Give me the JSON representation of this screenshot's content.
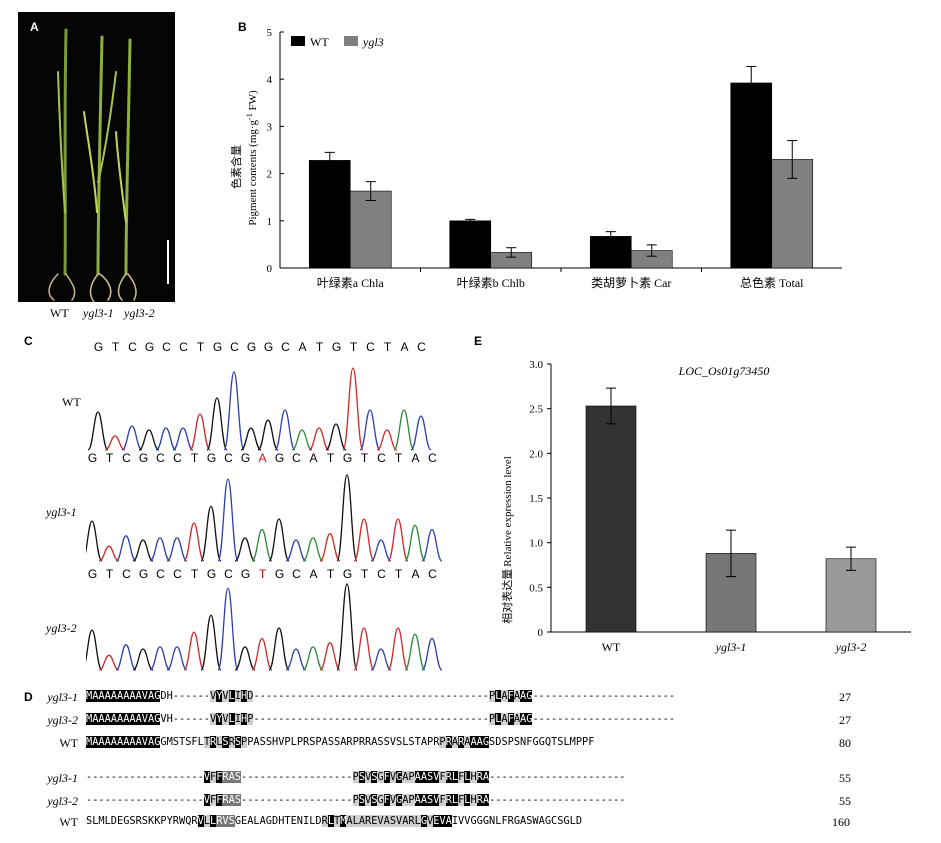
{
  "panel_a": {
    "letter": "A",
    "labels": [
      "WT",
      "ygl3-1",
      "ygl3-2"
    ]
  },
  "panel_b": {
    "letter": "B",
    "ylabel_cn": "色素含量",
    "ylabel_en": "Pigment contents (mg·g",
    "ylabel_sup": "-1",
    "ylabel_tail": " FW)",
    "legend_wt": "WT",
    "legend_mut": "ygl3"
  },
  "panel_c": {
    "letter": "C",
    "seq_wt": [
      "G",
      "T",
      "C",
      "G",
      "C",
      "C",
      "T",
      "G",
      "C",
      "G",
      "G",
      "C",
      "A",
      "T",
      "G",
      "T",
      "C",
      "T",
      "A",
      "C"
    ],
    "seq_m1": [
      "G",
      "T",
      "C",
      "G",
      "C",
      "C",
      "T",
      "G",
      "C",
      "G",
      "A",
      "G",
      "C",
      "A",
      "T",
      "G",
      "T",
      "C",
      "T",
      "A",
      "C"
    ],
    "seq_m2": [
      "G",
      "T",
      "C",
      "G",
      "C",
      "C",
      "T",
      "G",
      "C",
      "G",
      "T",
      "G",
      "C",
      "A",
      "T",
      "G",
      "T",
      "C",
      "T",
      "A",
      "C"
    ],
    "label_wt": "WT",
    "label_m1": "ygl3-1",
    "label_m2": "ygl3-2",
    "mut_index_m1": 10,
    "mut_index_m2": 10
  },
  "panel_d": {
    "letter": "D",
    "names": [
      "ygl3-1",
      "ygl3-2",
      "WT"
    ],
    "block1": {
      "rows": [
        [
          [
            "b",
            "MAAAAAAAAVAG"
          ],
          [
            "n",
            "DH------"
          ],
          [
            "l",
            "V"
          ],
          [
            "b",
            "Y"
          ],
          [
            "l",
            "V"
          ],
          [
            "b",
            "L"
          ],
          [
            "l",
            "I"
          ],
          [
            "b",
            "H"
          ],
          [
            "l",
            "D"
          ],
          [
            "n",
            "--------------------------------------"
          ],
          [
            "l",
            "P"
          ],
          [
            "b",
            "L"
          ],
          [
            "l",
            "A"
          ],
          [
            "b",
            "F"
          ],
          [
            "l",
            "A"
          ],
          [
            "b",
            "AG"
          ],
          [
            "n",
            "-----------------------"
          ]
        ],
        [
          [
            "b",
            "MAAAAAAAAVAG"
          ],
          [
            "n",
            "VH------"
          ],
          [
            "l",
            "V"
          ],
          [
            "b",
            "Y"
          ],
          [
            "l",
            "V"
          ],
          [
            "b",
            "L"
          ],
          [
            "l",
            "I"
          ],
          [
            "b",
            "H"
          ],
          [
            "l",
            "P"
          ],
          [
            "n",
            "--------------------------------------"
          ],
          [
            "l",
            "P"
          ],
          [
            "b",
            "L"
          ],
          [
            "l",
            "A"
          ],
          [
            "b",
            "F"
          ],
          [
            "l",
            "A"
          ],
          [
            "b",
            "AG"
          ],
          [
            "n",
            "-----------------------"
          ]
        ],
        [
          [
            "b",
            "MAAAAAAAAVAG"
          ],
          [
            "n",
            "GMSTSFL"
          ],
          [
            "l",
            "T"
          ],
          [
            "b",
            "R"
          ],
          [
            "l",
            "L"
          ],
          [
            "b",
            "S"
          ],
          [
            "l",
            "R"
          ],
          [
            "b",
            "S"
          ],
          [
            "l",
            "P"
          ],
          [
            "n",
            "PASSHVPLPRSPASSARPRRASSVSLSTAPR"
          ],
          [
            "l",
            "P"
          ],
          [
            "b",
            "R"
          ],
          [
            "l",
            "A"
          ],
          [
            "b",
            "R"
          ],
          [
            "l",
            "A"
          ],
          [
            "b",
            "AAG"
          ],
          [
            "n",
            "SDSPSNFGGQTSLMPPF"
          ]
        ]
      ],
      "nums": [
        "27",
        "27",
        "80"
      ]
    },
    "block2": {
      "rows": [
        [
          [
            "n",
            "-------------------"
          ],
          [
            "b",
            "V"
          ],
          [
            "l",
            "F"
          ],
          [
            "b",
            "F"
          ],
          [
            "g",
            "RAS"
          ],
          [
            "n",
            "------------------"
          ],
          [
            "l",
            "P"
          ],
          [
            "b",
            "S"
          ],
          [
            "l",
            "V"
          ],
          [
            "b",
            "S"
          ],
          [
            "l",
            "G"
          ],
          [
            "b",
            "F"
          ],
          [
            "l",
            "V"
          ],
          [
            "b",
            "G"
          ],
          [
            "l",
            "AP"
          ],
          [
            "b",
            "AASV"
          ],
          [
            "l",
            "F"
          ],
          [
            "b",
            "RL"
          ],
          [
            "l",
            "F"
          ],
          [
            "b",
            "L"
          ],
          [
            "l",
            "H"
          ],
          [
            "b",
            "RA"
          ],
          [
            "n",
            "----------------------"
          ]
        ],
        [
          [
            "n",
            "-------------------"
          ],
          [
            "b",
            "V"
          ],
          [
            "l",
            "F"
          ],
          [
            "b",
            "F"
          ],
          [
            "g",
            "RAS"
          ],
          [
            "n",
            "------------------"
          ],
          [
            "l",
            "P"
          ],
          [
            "b",
            "S"
          ],
          [
            "l",
            "V"
          ],
          [
            "b",
            "S"
          ],
          [
            "l",
            "G"
          ],
          [
            "b",
            "F"
          ],
          [
            "l",
            "V"
          ],
          [
            "b",
            "G"
          ],
          [
            "l",
            "AP"
          ],
          [
            "b",
            "AASV"
          ],
          [
            "l",
            "F"
          ],
          [
            "b",
            "RL"
          ],
          [
            "l",
            "F"
          ],
          [
            "b",
            "L"
          ],
          [
            "l",
            "H"
          ],
          [
            "b",
            "RA"
          ],
          [
            "n",
            "----------------------"
          ]
        ],
        [
          [
            "n",
            "SLMLDEGSRSKKPYRWQR"
          ],
          [
            "b",
            "V"
          ],
          [
            "l",
            "L"
          ],
          [
            "b",
            "L"
          ],
          [
            "g",
            "RVS"
          ],
          [
            "n",
            "GEALAGDHTENILD"
          ],
          [
            "l",
            "R"
          ],
          [
            "b",
            "L"
          ],
          [
            "l",
            "T"
          ],
          [
            "b",
            "M"
          ],
          [
            "l",
            "ALAREVASVARL"
          ],
          [
            "b",
            "G"
          ],
          [
            "l",
            "V"
          ],
          [
            "b",
            "EVA"
          ],
          [
            "n",
            "IVVGGGNLFRGASWAGCSGLD"
          ]
        ]
      ],
      "nums": [
        "55",
        "55",
        "160"
      ]
    }
  },
  "panel_e": {
    "letter": "E",
    "title": "LOC_Os01g73450",
    "ylabel_cn": "相对表达量",
    "ylabel_en": "Relative expression level"
  },
  "chart_data": [
    {
      "type": "bar",
      "panel": "B",
      "categories": [
        "叶绿素a Chla",
        "叶绿素b Chlb",
        "类胡萝卜素 Car",
        "总色素 Total"
      ],
      "series": [
        {
          "name": "WT",
          "values": [
            2.28,
            1.0,
            0.67,
            3.92
          ],
          "errors": [
            0.17,
            0.03,
            0.1,
            0.35
          ],
          "color": "#000000"
        },
        {
          "name": "ygl3",
          "values": [
            1.63,
            0.33,
            0.37,
            2.3
          ],
          "errors": [
            0.2,
            0.1,
            0.12,
            0.4
          ],
          "color": "#808080"
        }
      ],
      "ylim": [
        0,
        5
      ],
      "yticks": [
        "0",
        "1",
        "2",
        "3",
        "4",
        "5"
      ],
      "legend": "top-left"
    },
    {
      "type": "bar",
      "panel": "E",
      "title": "LOC_Os01g73450",
      "categories": [
        "WT",
        "ygl3-1",
        "ygl3-2"
      ],
      "values": [
        2.53,
        0.88,
        0.82
      ],
      "errors": [
        0.2,
        0.26,
        0.13
      ],
      "colors": [
        "#333333",
        "#777777",
        "#9a9a9a"
      ],
      "ylim": [
        0,
        3.0
      ],
      "yticks": [
        "0",
        "0.5",
        "1.0",
        "1.5",
        "2.0",
        "2.5",
        "3.0"
      ]
    }
  ]
}
